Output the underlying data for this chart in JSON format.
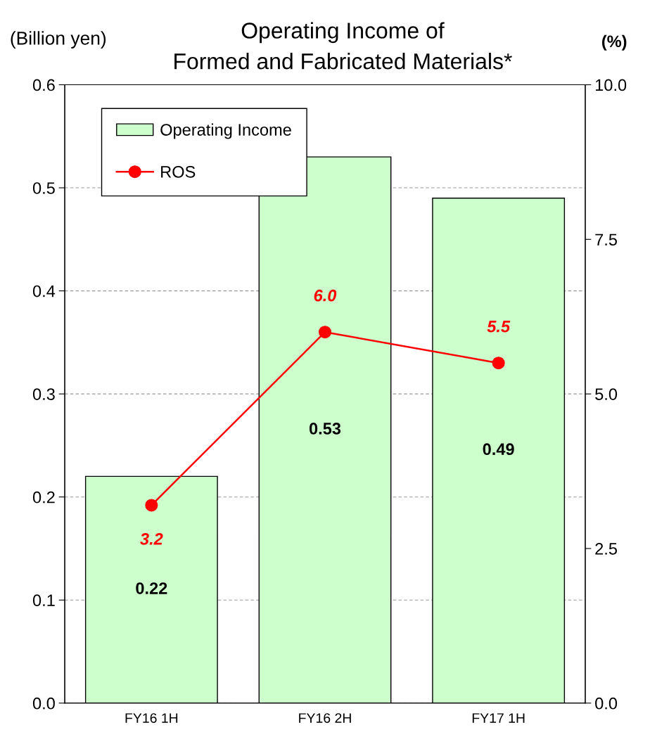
{
  "chart_data": {
    "type": "bar",
    "title": "Operating Income of\nFormed and Fabricated Materials*",
    "ylabel": "(Billion yen)",
    "y2label": "(%)",
    "categories": [
      "FY16 1H",
      "FY16 2H",
      "FY17 1H"
    ],
    "series": [
      {
        "name": "Operating Income",
        "color": "#ccffcc",
        "values": [
          0.22,
          0.53,
          0.49
        ],
        "value_labels": [
          "0.22",
          "0.53",
          "0.49"
        ]
      },
      {
        "name": "ROS",
        "type": "line",
        "axis": "y2",
        "color": "#ff0000",
        "marker": "circle",
        "values": [
          3.2,
          6.0,
          5.5
        ],
        "value_labels": [
          "3.2",
          "6.0",
          "5.5"
        ]
      }
    ],
    "ylim": [
      0,
      0.6
    ],
    "yticks": [
      {
        "value": 0,
        "label": "0.0"
      },
      {
        "value": 0.1,
        "label": "0.1"
      },
      {
        "value": 0.2,
        "label": "0.2"
      },
      {
        "value": 0.3,
        "label": "0.3"
      },
      {
        "value": 0.4,
        "label": "0.4"
      },
      {
        "value": 0.5,
        "label": "0.5"
      },
      {
        "value": 0.6,
        "label": "0.6"
      }
    ],
    "y2lim": [
      0,
      10
    ],
    "y2ticks": [
      {
        "value": 0,
        "label": "0.0"
      },
      {
        "value": 2.5,
        "label": "2.5"
      },
      {
        "value": 5,
        "label": "5.0"
      },
      {
        "value": 7.5,
        "label": "7.5"
      },
      {
        "value": 10,
        "label": "10.0"
      }
    ],
    "grid": "y",
    "legend": "top left"
  }
}
